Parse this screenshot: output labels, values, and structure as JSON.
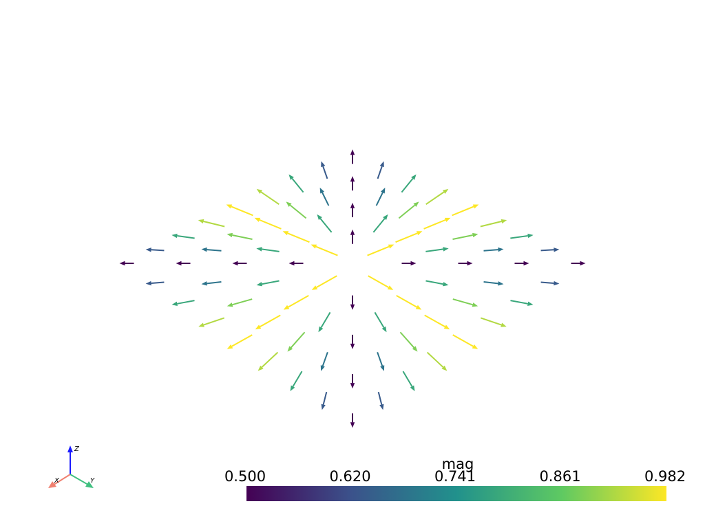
{
  "colorbar": {
    "title": "mag",
    "ticks": [
      "0.500",
      "0.620",
      "0.741",
      "0.861",
      "0.982"
    ]
  },
  "axes_widget": {
    "x_label": "X",
    "y_label": "Y",
    "z_label": "Z"
  }
}
